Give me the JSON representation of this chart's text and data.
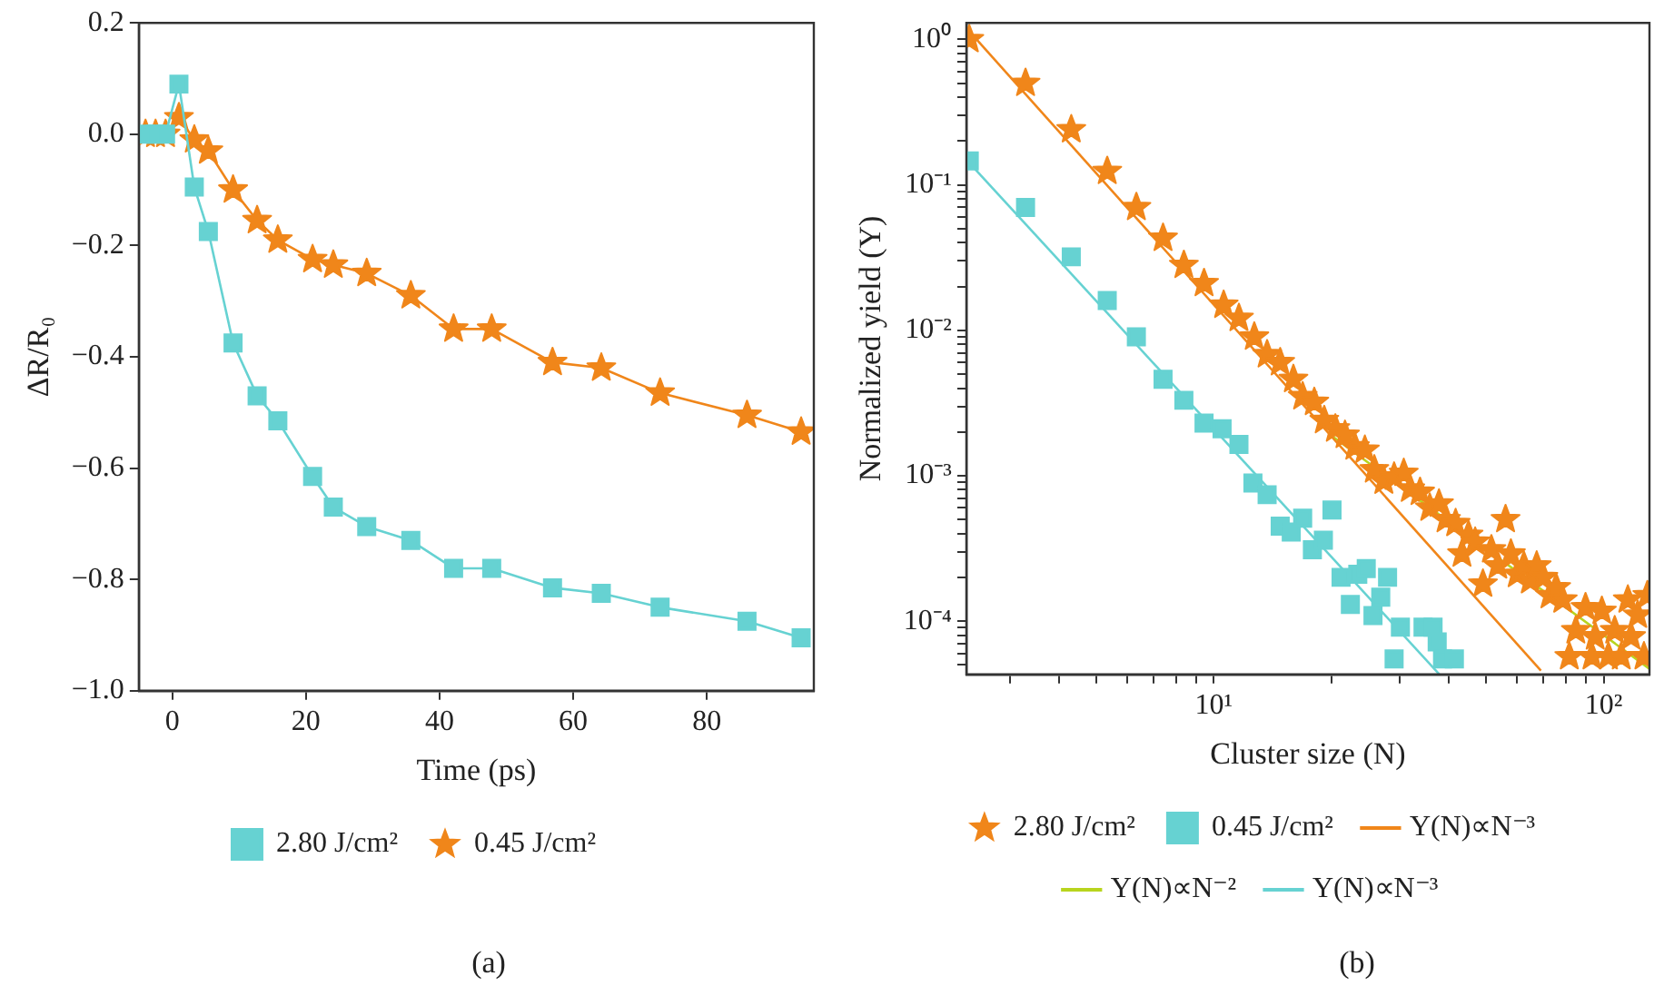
{
  "chart_data": [
    {
      "type": "line",
      "xlabel": "Time (ps)",
      "ylabel": "ΔR/R₀",
      "annotations": [
        "(a)"
      ],
      "x": [
        -4,
        -2.5,
        -1,
        1,
        3.3,
        5.4,
        9.1,
        12.7,
        15.8,
        21,
        24.1,
        29.1,
        35.7,
        42.1,
        47.8,
        56.9,
        64.2,
        73,
        86,
        94.1
      ],
      "series": [
        {
          "name": "2.80 J/cm²",
          "color": "#66d2d2",
          "marker": "square",
          "values": [
            0,
            0,
            0,
            0.09,
            -0.095,
            -0.175,
            -0.375,
            -0.47,
            -0.515,
            -0.615,
            -0.67,
            -0.705,
            -0.73,
            -0.78,
            -0.78,
            -0.815,
            -0.825,
            -0.85,
            -0.875,
            -0.905
          ]
        },
        {
          "name": "0.45 J/cm²",
          "color": "#f0861a",
          "marker": "star",
          "values": [
            0,
            0,
            0,
            0.03,
            -0.01,
            -0.03,
            -0.1,
            -0.155,
            -0.19,
            -0.225,
            -0.235,
            -0.25,
            -0.29,
            -0.35,
            -0.35,
            -0.41,
            -0.42,
            -0.465,
            -0.505,
            -0.535
          ]
        }
      ],
      "xlim": [
        -5,
        96
      ],
      "xticks": [
        0,
        20,
        40,
        60,
        80
      ],
      "ylim": [
        -1,
        0.2
      ],
      "yticks": [
        {
          "value": -1,
          "label": "−1.0"
        },
        {
          "value": -0.8,
          "label": "−0.8"
        },
        {
          "value": -0.6,
          "label": "−0.6"
        },
        {
          "value": -0.4,
          "label": "−0.4"
        },
        {
          "value": -0.2,
          "label": "−0.2"
        },
        {
          "value": 0,
          "label": "0.0"
        },
        {
          "value": 0.2,
          "label": "0.2"
        }
      ],
      "grid": false,
      "legend": "bottom",
      "line_style": "solid"
    },
    {
      "type": "scatter",
      "xlabel": "Cluster size (N)",
      "ylabel": "Normalized yield (Y)",
      "annotations": [
        "(b)"
      ],
      "log": "xy",
      "series": [
        {
          "name": "2.80 J/cm²",
          "color": "#f0861a",
          "marker": "star",
          "x": [
            2.36,
            3.29,
            4.31,
            5.33,
            6.33,
            7.41,
            8.38,
            9.44,
            10.6,
            11.6,
            12.7,
            13.7,
            14.8,
            16,
            16.9,
            18.1,
            19.2,
            20.5,
            21.7,
            23,
            24.4,
            25.8,
            27.3,
            29,
            30.7,
            31.9,
            33.8,
            35.8,
            37.8,
            39.4,
            41.7,
            43.3,
            45,
            46.8,
            49,
            51.5,
            53.5,
            56,
            57.8,
            60,
            62.4,
            64.8,
            67.3,
            70,
            72.8,
            75.5,
            78.5,
            81.6,
            84.8,
            89.8,
            93.3,
            95.1,
            98.9,
            102.8,
            106.7,
            110.9,
            115.3,
            117.5,
            122.2,
            126.8,
            129.4
          ],
          "values": [
            1.0,
            0.5,
            0.24,
            0.124,
            0.07,
            0.043,
            0.028,
            0.021,
            0.0149,
            0.0121,
            0.009,
            0.0068,
            0.006,
            0.0046,
            0.0035,
            0.0032,
            0.0024,
            0.0021,
            0.0019,
            0.00158,
            0.0015,
            0.0011,
            0.00092,
            0.00098,
            0.00104,
            0.00081,
            0.00077,
            0.0006,
            0.00064,
            0.0005,
            0.00047,
            0.00029,
            0.00039,
            0.00035,
            0.00018,
            0.00031,
            0.00024,
            0.0005,
            0.00029,
            0.00021,
            0.00024,
            0.00019,
            0.00024,
            0.0002,
            0.00015,
            0.00017,
            0.00014,
            5.7e-05,
            8.6e-05,
            0.000124,
            5.7e-05,
            7.8e-05,
            0.000117,
            5.7e-05,
            8.6e-05,
            5.7e-05,
            0.00014,
            7.8e-05,
            0.00011,
            5.7e-05,
            0.00015
          ]
        },
        {
          "name": "0.45 J/cm²",
          "color": "#66d2d2",
          "marker": "square",
          "x": [
            2.36,
            3.29,
            4.31,
            5.33,
            6.33,
            7.41,
            8.38,
            9.44,
            10.5,
            11.6,
            12.6,
            13.7,
            14.8,
            15.8,
            16.9,
            17.9,
            19.1,
            20.1,
            21.2,
            22.4,
            23.4,
            24.6,
            25.6,
            26.8,
            27.9,
            29,
            30.1,
            34.4,
            36.5,
            37.4,
            38.6,
            41.4
          ],
          "values": [
            0.146,
            0.07,
            0.032,
            0.016,
            0.009,
            0.0046,
            0.0033,
            0.0023,
            0.0021,
            0.00164,
            0.00089,
            0.00074,
            0.00045,
            0.00041,
            0.00051,
            0.00031,
            0.00036,
            0.00058,
            0.0002,
            0.00013,
            0.00021,
            0.00023,
            0.000109,
            0.000146,
            0.0002,
            5.5e-05,
            9.1e-05,
            9.1e-05,
            9.1e-05,
            7.2e-05,
            5.5e-05,
            5.5e-05
          ]
        },
        {
          "name": "Y(N)∝N⁻³",
          "color": "#f0861a",
          "type": "line",
          "marker": "none",
          "x": [
            2.32,
            69
          ],
          "values": [
            1.2,
            4.56e-05
          ]
        },
        {
          "name": "Y(N)∝N⁻²",
          "color": "#b8d41e",
          "type": "line",
          "marker": "none",
          "x": [
            19.95,
            131
          ],
          "values": [
            0.0019,
            4.7e-05
          ]
        },
        {
          "name": "Y(N)∝N⁻³",
          "color": "#66d2d2",
          "type": "line",
          "marker": "none",
          "x": [
            2.32,
            37.9
          ],
          "values": [
            0.149,
            4.3e-05
          ]
        }
      ],
      "xlim": [
        2.32,
        131
      ],
      "xticks": [
        {
          "value": 3,
          "label": null
        },
        {
          "value": 4,
          "label": null
        },
        {
          "value": 5,
          "label": null
        },
        {
          "value": 6,
          "label": null
        },
        {
          "value": 7,
          "label": null
        },
        {
          "value": 8,
          "label": null
        },
        {
          "value": 9,
          "label": null
        },
        {
          "value": 10,
          "label": "10¹"
        },
        {
          "value": 20,
          "label": null
        },
        {
          "value": 30,
          "label": null
        },
        {
          "value": 40,
          "label": null
        },
        {
          "value": 50,
          "label": null
        },
        {
          "value": 60,
          "label": null
        },
        {
          "value": 70,
          "label": null
        },
        {
          "value": 80,
          "label": null
        },
        {
          "value": 90,
          "label": null
        },
        {
          "value": 100,
          "label": "10²"
        }
      ],
      "ylim": [
        4.3e-05,
        1.3
      ],
      "yticks": [
        {
          "value": 5e-05,
          "label": null
        },
        {
          "value": 6e-05,
          "label": null
        },
        {
          "value": 7e-05,
          "label": null
        },
        {
          "value": 8e-05,
          "label": null
        },
        {
          "value": 9e-05,
          "label": null
        },
        {
          "value": 0.0001,
          "label": "10⁻⁴"
        },
        {
          "value": 0.0002,
          "label": null
        },
        {
          "value": 0.0003,
          "label": null
        },
        {
          "value": 0.0004,
          "label": null
        },
        {
          "value": 0.0005,
          "label": null
        },
        {
          "value": 0.0006,
          "label": null
        },
        {
          "value": 0.0007,
          "label": null
        },
        {
          "value": 0.0008,
          "label": null
        },
        {
          "value": 0.0009,
          "label": null
        },
        {
          "value": 0.001,
          "label": "10⁻³"
        },
        {
          "value": 0.002,
          "label": null
        },
        {
          "value": 0.003,
          "label": null
        },
        {
          "value": 0.004,
          "label": null
        },
        {
          "value": 0.005,
          "label": null
        },
        {
          "value": 0.006,
          "label": null
        },
        {
          "value": 0.007,
          "label": null
        },
        {
          "value": 0.008,
          "label": null
        },
        {
          "value": 0.009,
          "label": null
        },
        {
          "value": 0.01,
          "label": "10⁻²"
        },
        {
          "value": 0.02,
          "label": null
        },
        {
          "value": 0.03,
          "label": null
        },
        {
          "value": 0.04,
          "label": null
        },
        {
          "value": 0.05,
          "label": null
        },
        {
          "value": 0.06,
          "label": null
        },
        {
          "value": 0.07,
          "label": null
        },
        {
          "value": 0.08,
          "label": null
        },
        {
          "value": 0.09,
          "label": null
        },
        {
          "value": 0.1,
          "label": "10⁻¹"
        },
        {
          "value": 0.2,
          "label": null
        },
        {
          "value": 0.3,
          "label": null
        },
        {
          "value": 0.4,
          "label": null
        },
        {
          "value": 0.5,
          "label": null
        },
        {
          "value": 0.6,
          "label": null
        },
        {
          "value": 0.7,
          "label": null
        },
        {
          "value": 0.8,
          "label": null
        },
        {
          "value": 0.9,
          "label": null
        },
        {
          "value": 1,
          "label": "10⁰"
        }
      ],
      "grid": false,
      "legend": "bottom"
    }
  ]
}
